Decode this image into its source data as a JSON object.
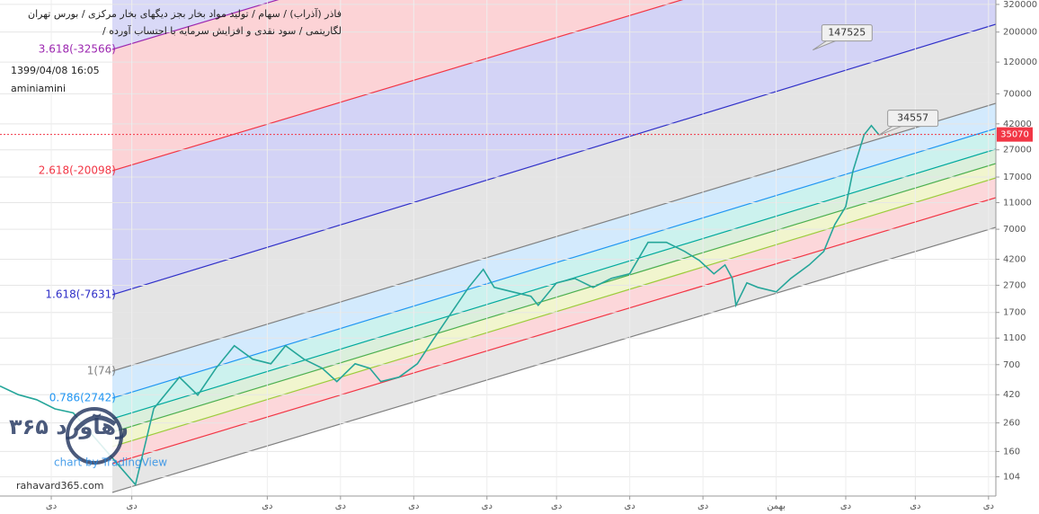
{
  "chart_data": {
    "type": "line",
    "title": "فاذر (آذراب) / سهام / تولید مواد بخار بجز دیگهای بخار مرکزی / بورس تهران",
    "subtitle": "لگاریتمی / سود نقدی و افزایش سرمایه با احتساب آورده /",
    "date": "1399/04/08 16:05",
    "author": "aminiamini",
    "log_scale": true,
    "grid": true,
    "ylim": [
      75,
      345000
    ],
    "yticks": [
      104,
      160,
      260,
      420,
      700,
      1100,
      1700,
      2700,
      4200,
      7000,
      11000,
      17000,
      27000,
      42000,
      70000,
      120000,
      200000,
      320000
    ],
    "xlim": [
      0,
      136
    ],
    "xticks": [
      {
        "value": 7,
        "label": "دی"
      },
      {
        "value": 18,
        "label": "دی"
      },
      {
        "value": 36.5,
        "label": "دی"
      },
      {
        "value": 46.5,
        "label": "دی"
      },
      {
        "value": 56.5,
        "label": "دی"
      },
      {
        "value": 66.5,
        "label": "دی"
      },
      {
        "value": 76,
        "label": "دی"
      },
      {
        "value": 86,
        "label": "دی"
      },
      {
        "value": 96,
        "label": "دی"
      },
      {
        "value": 106,
        "label": "بهمن"
      },
      {
        "value": 115.5,
        "label": "دی"
      },
      {
        "value": 125,
        "label": "دی"
      },
      {
        "value": 135,
        "label": "دی"
      }
    ],
    "series": [
      {
        "name": "فاذر",
        "color": "#26a69a",
        "x": [
          0,
          2.5,
          5,
          7.5,
          10,
          18.5,
          21,
          24.5,
          27,
          29.5,
          32,
          34.5,
          37,
          39,
          41.5,
          44,
          46,
          48.5,
          50.5,
          52,
          54.5,
          57,
          59,
          61.5,
          64,
          66,
          67.5,
          70,
          72.5,
          73.5,
          76,
          78.5,
          81,
          83.5,
          86,
          88.5,
          91,
          93.5,
          95.5,
          97.5,
          99,
          100,
          100.5,
          102,
          103.5,
          106,
          108,
          110.5,
          112.5,
          114,
          115.5,
          116.5,
          118,
          119,
          120
        ],
        "values": [
          487,
          420,
          386,
          330,
          308,
          91,
          332,
          566,
          417,
          659,
          966,
          769,
          711,
          966,
          769,
          659,
          525,
          711,
          659,
          525,
          566,
          711,
          1042,
          1648,
          2606,
          3540,
          2606,
          2415,
          2239,
          1923,
          2812,
          3034,
          2606,
          3034,
          3281,
          5598,
          5598,
          4797,
          4121,
          3281,
          3819,
          3034,
          1923,
          2812,
          2606,
          2415,
          3034,
          3819,
          4797,
          7586,
          10300,
          18970,
          34900,
          40740,
          35070
        ]
      }
    ],
    "last_price": 35070,
    "last_price_color": "#f23645",
    "annotations": [
      {
        "text": "147525",
        "value": 147525,
        "x": 111
      },
      {
        "text": "34557",
        "value": 34557,
        "x": 120
      }
    ],
    "channel": [
      {
        "label": "3.618(-32566)",
        "color": "#9c27b0",
        "fill": "rgba(242,54,69,0.22)"
      },
      {
        "label": "2.618(-20098)",
        "color": "#f23645",
        "fill": "rgba(80,80,220,0.25)"
      },
      {
        "label": "1.618(-7631)",
        "color": "#3030c8",
        "fill": "rgba(130,130,130,0.22)"
      },
      {
        "label": "1(74)",
        "color": "#808080",
        "fill": "rgba(33,150,243,0.2)"
      },
      {
        "label": "0.786(2742)",
        "color": "#2196f3",
        "fill": "rgba(0,188,170,0.2)"
      },
      {
        "color": "#00a99d",
        "fill": "rgba(76,175,80,0.2)"
      },
      {
        "color": "#4caf50",
        "fill": "rgba(205,220,80,0.28)"
      },
      {
        "color": "#9ccc3c",
        "fill": "rgba(242,54,69,0.2)"
      },
      {
        "color": "#f23645",
        "fill": "rgba(130,130,130,0.2)"
      },
      {
        "color": "#808080"
      }
    ]
  },
  "watermark": {
    "brand": "رهآورد ۳۶۵",
    "site": "rahavard365.com",
    "credit": "chart by TradingView"
  }
}
